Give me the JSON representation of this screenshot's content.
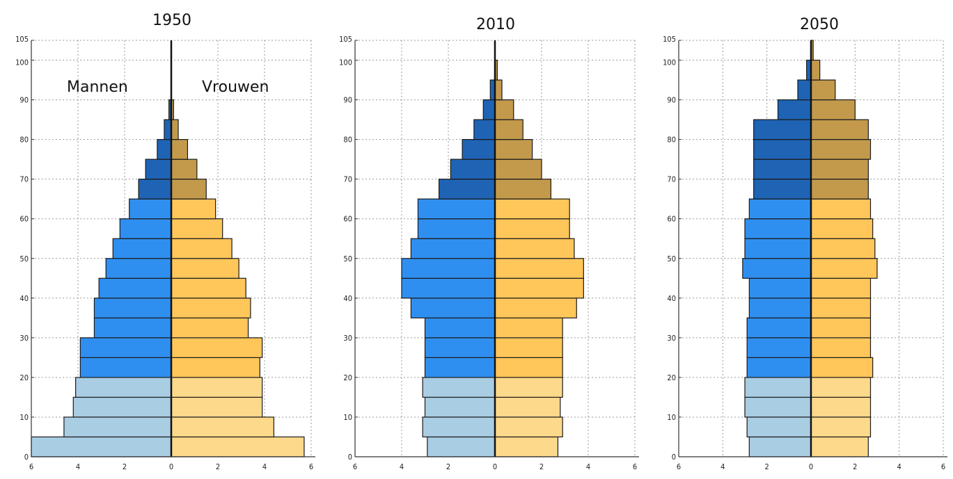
{
  "chart_data": [
    {
      "type": "bar",
      "title": "1950",
      "labels": {
        "male": "Mannen",
        "female": "Vrouwen"
      },
      "age_ticks": [
        "0",
        "10",
        "20",
        "30",
        "40",
        "50",
        "60",
        "70",
        "80",
        "90",
        "100",
        "105"
      ],
      "x_ticks": [
        "6",
        "4",
        "2",
        "0",
        "2",
        "4",
        "6"
      ],
      "xlim": [
        -6,
        6
      ],
      "age_groups": [
        0,
        5,
        10,
        15,
        20,
        25,
        30,
        35,
        40,
        45,
        50,
        55,
        60,
        65,
        70,
        75,
        80,
        85,
        90
      ],
      "male": [
        6.0,
        4.6,
        4.2,
        4.1,
        3.9,
        3.9,
        3.3,
        3.3,
        3.1,
        2.8,
        2.5,
        2.2,
        1.8,
        1.4,
        1.1,
        0.6,
        0.3,
        0.1,
        0.0
      ],
      "female": [
        5.7,
        4.4,
        3.9,
        3.9,
        3.8,
        3.9,
        3.3,
        3.4,
        3.2,
        2.9,
        2.6,
        2.2,
        1.9,
        1.5,
        1.1,
        0.7,
        0.3,
        0.1,
        0.0
      ]
    },
    {
      "type": "bar",
      "title": "2010",
      "age_ticks": [
        "0",
        "10",
        "20",
        "30",
        "40",
        "50",
        "60",
        "70",
        "80",
        "90",
        "100",
        "105"
      ],
      "x_ticks": [
        "6",
        "4",
        "2",
        "0",
        "2",
        "4",
        "6"
      ],
      "xlim": [
        -6,
        6
      ],
      "age_groups": [
        0,
        5,
        10,
        15,
        20,
        25,
        30,
        35,
        40,
        45,
        50,
        55,
        60,
        65,
        70,
        75,
        80,
        85,
        90,
        95
      ],
      "male": [
        2.9,
        3.1,
        3.0,
        3.1,
        3.0,
        3.0,
        3.0,
        3.6,
        4.0,
        4.0,
        3.6,
        3.3,
        3.3,
        2.4,
        1.9,
        1.4,
        0.9,
        0.5,
        0.2,
        0.0
      ],
      "female": [
        2.7,
        2.9,
        2.8,
        2.9,
        2.9,
        2.9,
        2.9,
        3.5,
        3.8,
        3.8,
        3.4,
        3.2,
        3.2,
        2.4,
        2.0,
        1.6,
        1.2,
        0.8,
        0.3,
        0.1
      ]
    },
    {
      "type": "bar",
      "title": "2050",
      "age_ticks": [
        "0",
        "10",
        "20",
        "30",
        "40",
        "50",
        "60",
        "70",
        "80",
        "90",
        "100",
        "105"
      ],
      "x_ticks": [
        "6",
        "4",
        "2",
        "0",
        "2",
        "4",
        "6"
      ],
      "xlim": [
        -6,
        6
      ],
      "age_groups": [
        0,
        5,
        10,
        15,
        20,
        25,
        30,
        35,
        40,
        45,
        50,
        55,
        60,
        65,
        70,
        75,
        80,
        85,
        90,
        95,
        100
      ],
      "male": [
        2.8,
        2.9,
        3.0,
        3.0,
        2.9,
        2.9,
        2.9,
        2.8,
        2.8,
        3.1,
        3.0,
        3.0,
        2.8,
        2.6,
        2.6,
        2.6,
        2.6,
        1.5,
        0.6,
        0.2,
        0.0
      ],
      "female": [
        2.6,
        2.7,
        2.7,
        2.7,
        2.8,
        2.7,
        2.7,
        2.7,
        2.7,
        3.0,
        2.9,
        2.8,
        2.7,
        2.6,
        2.6,
        2.7,
        2.6,
        2.0,
        1.1,
        0.4,
        0.1
      ]
    }
  ],
  "colors": {
    "male_young": "#a9cde3",
    "male_adult": "#2f8ff0",
    "male_old": "#1f64b4",
    "female_young": "#fdd98b",
    "female_adult": "#ffc65a",
    "female_old": "#c39a4c",
    "outline": "#1a1a1a",
    "grid": "#9a9a9a"
  }
}
